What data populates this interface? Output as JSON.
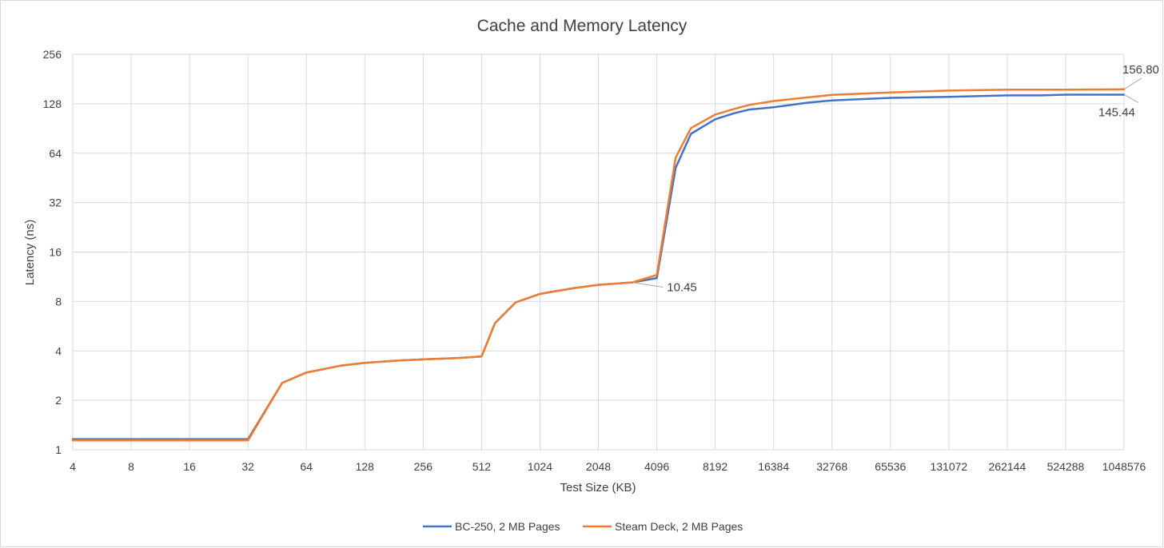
{
  "chart_data": {
    "type": "line",
    "title": "Cache and Memory Latency",
    "xlabel": "Test Size (KB)",
    "ylabel": "Latency (ns)",
    "x_scale": "log2",
    "y_scale": "log2",
    "xlim": [
      4,
      1048576
    ],
    "ylim": [
      1,
      256
    ],
    "x_ticks": [
      "4",
      "8",
      "16",
      "32",
      "64",
      "128",
      "256",
      "512",
      "1024",
      "2048",
      "4096",
      "8192",
      "16384",
      "32768",
      "65536",
      "131072",
      "262144",
      "524288",
      "1048576"
    ],
    "y_ticks": [
      "1",
      "2",
      "4",
      "8",
      "16",
      "32",
      "64",
      "128",
      "256"
    ],
    "x_tick_values": [
      4,
      8,
      16,
      32,
      64,
      128,
      256,
      512,
      1024,
      2048,
      4096,
      8192,
      16384,
      32768,
      65536,
      131072,
      262144,
      524288,
      1048576
    ],
    "y_tick_values": [
      1,
      2,
      4,
      8,
      16,
      32,
      64,
      128,
      256
    ],
    "grid": true,
    "legend_position": "bottom",
    "series": [
      {
        "name": "BC-250, 2 MB Pages",
        "color": "#4472c4",
        "x": [
          4,
          8,
          16,
          32,
          48,
          64,
          96,
          128,
          192,
          256,
          384,
          512,
          600,
          768,
          1024,
          1536,
          2048,
          3072,
          4096,
          5120,
          6144,
          8192,
          10240,
          12288,
          16384,
          24576,
          32768,
          65536,
          131072,
          262144,
          393216,
          524288,
          1048576
        ],
        "y": [
          1.16,
          1.16,
          1.16,
          1.16,
          2.55,
          2.95,
          3.25,
          3.38,
          3.5,
          3.55,
          3.62,
          3.7,
          5.9,
          7.9,
          8.9,
          9.65,
          10.1,
          10.45,
          11.1,
          52,
          84,
          103,
          112,
          118,
          122,
          130,
          134,
          139,
          141,
          144,
          144,
          145.44,
          145.44
        ]
      },
      {
        "name": "Steam Deck, 2 MB Pages",
        "color": "#ed7d31",
        "x": [
          4,
          8,
          16,
          32,
          48,
          64,
          96,
          128,
          192,
          256,
          384,
          512,
          600,
          768,
          1024,
          1536,
          2048,
          3072,
          4096,
          5120,
          6144,
          8192,
          10240,
          12288,
          16384,
          24576,
          32768,
          65536,
          131072,
          262144,
          393216,
          524288,
          1048576
        ],
        "y": [
          1.14,
          1.14,
          1.14,
          1.14,
          2.55,
          2.95,
          3.25,
          3.38,
          3.5,
          3.55,
          3.62,
          3.7,
          5.9,
          7.9,
          8.9,
          9.65,
          10.1,
          10.45,
          11.6,
          60,
          91,
          110,
          119,
          126,
          133,
          140,
          145,
          150,
          154,
          156,
          156,
          156,
          156.8
        ]
      }
    ],
    "annotations": [
      {
        "text": "156.80",
        "x": 1048576,
        "y": 156.8
      },
      {
        "text": "145.44",
        "x": 1048576,
        "y": 145.44
      },
      {
        "text": "10.45",
        "x": 3072,
        "y": 10.45
      }
    ]
  }
}
